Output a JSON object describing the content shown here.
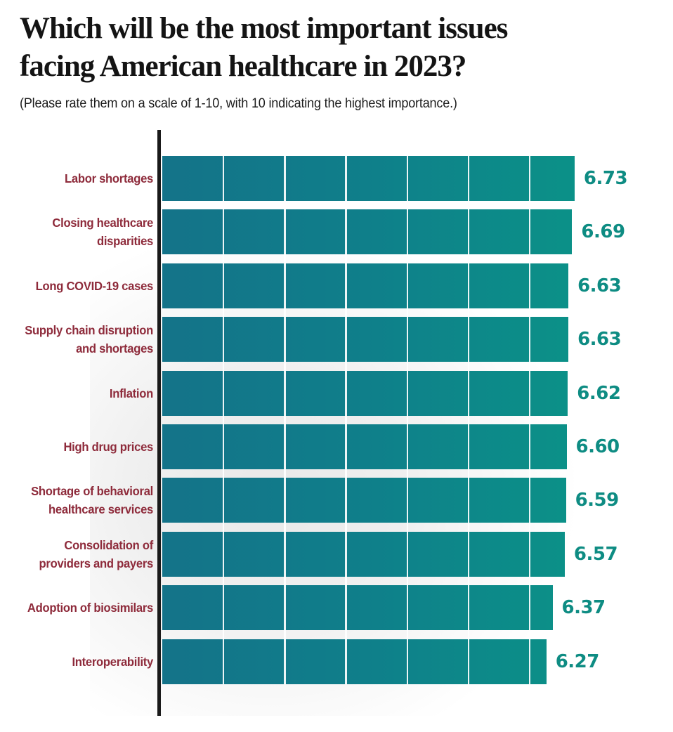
{
  "title": "Which will be the most important issues facing American healthcare in 2023?",
  "title_lines": [
    "Which will be the most important issues",
    "facing American healthcare in 2023?"
  ],
  "subtitle": "(Please rate them on a scale of 1-10, with 10 indicating the highest importance.)",
  "chart_data": {
    "type": "bar",
    "orientation": "horizontal",
    "title": "Which will be the most important issues facing American healthcare in 2023?",
    "subtitle": "(Please rate them on a scale of 1-10, with 10 indicating the highest importance.)",
    "categories": [
      "Labor shortages",
      "Closing healthcare disparities",
      "Long COVID-19 cases",
      "Supply chain disruption and shortages",
      "Inflation",
      "High drug prices",
      "Shortage of behavioral healthcare services",
      "Consolidation of providers and payers",
      "Adoption of biosimilars",
      "Interoperability"
    ],
    "values": [
      6.73,
      6.69,
      6.63,
      6.63,
      6.62,
      6.6,
      6.59,
      6.57,
      6.37,
      6.27
    ],
    "value_labels": [
      "6.73",
      "6.69",
      "6.63",
      "6.63",
      "6.62",
      "6.60",
      "6.59",
      "6.57",
      "6.37",
      "6.27"
    ],
    "xlabel": "",
    "ylabel": "",
    "xlim": [
      0,
      10
    ],
    "rating_scale_min": 1,
    "rating_scale_max": 10,
    "gridline_units": [
      1,
      2,
      3,
      4,
      5,
      6
    ],
    "grid": "vertical white lines over bars, one per rating unit",
    "legend": "none",
    "colors": {
      "bar_gradient_start": "#147389",
      "bar_gradient_mid": "#0F7F8A",
      "bar_gradient_end": "#0B9188",
      "category_label": "#8E2B3B",
      "value_label": "#0E8C83",
      "axis_line": "#1A1A1A",
      "gridline": "#FFFFFF",
      "title_text": "#141414",
      "background": "#FFFFFF"
    }
  }
}
